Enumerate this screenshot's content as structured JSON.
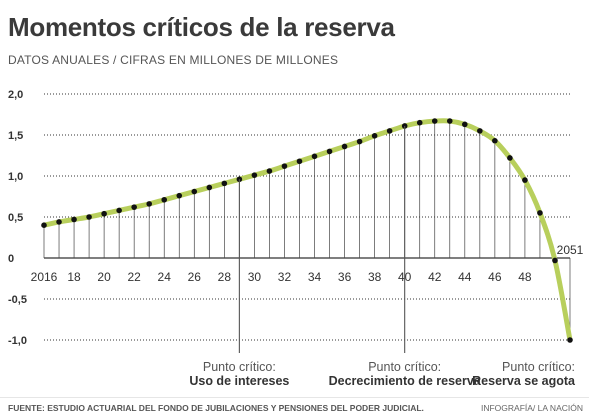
{
  "header": {
    "title": "Momentos críticos de la reserva",
    "subtitle": "DATOS ANUALES  / CIFRAS EN MILLONES DE MILLONES"
  },
  "footer": {
    "source": "FUENTE: ESTUDIO ACTUARIAL DEL FONDO DE JUBILACIONES Y PENSIONES DEL PODER JUDICIAL.",
    "credit": "INFOGRAFÍA/ LA NACIÓN"
  },
  "colors": {
    "line": "#b8cf5c",
    "points": "#111111",
    "grid": "#333333"
  },
  "chart_data": {
    "type": "line",
    "x": [
      2016,
      2017,
      2018,
      2019,
      2020,
      2021,
      2022,
      2023,
      2024,
      2025,
      2026,
      2027,
      2028,
      2029,
      2030,
      2031,
      2032,
      2033,
      2034,
      2035,
      2036,
      2037,
      2038,
      2039,
      2040,
      2041,
      2042,
      2043,
      2044,
      2045,
      2046,
      2047,
      2048,
      2049,
      2050,
      2051
    ],
    "series": [
      {
        "values": [
          0.4,
          0.44,
          0.47,
          0.5,
          0.54,
          0.58,
          0.62,
          0.66,
          0.71,
          0.76,
          0.81,
          0.86,
          0.91,
          0.96,
          1.01,
          1.06,
          1.12,
          1.18,
          1.24,
          1.3,
          1.36,
          1.42,
          1.49,
          1.55,
          1.61,
          1.65,
          1.67,
          1.67,
          1.63,
          1.55,
          1.43,
          1.22,
          0.95,
          0.55,
          -0.03,
          -1.0
        ]
      }
    ],
    "x_ticks": [
      "2016",
      "18",
      "20",
      "22",
      "24",
      "26",
      "28",
      "30",
      "32",
      "34",
      "36",
      "38",
      "40",
      "42",
      "44",
      "46",
      "48"
    ],
    "end_label": "2051",
    "y_ticks": [
      "2,0",
      "1,5",
      "1,0",
      "0,5",
      "0",
      "-0,5",
      "-1,0"
    ],
    "y_tick_values": [
      2.0,
      1.5,
      1.0,
      0.5,
      0,
      -0.5,
      -1.0
    ],
    "ylim": [
      -1.0,
      2.0
    ],
    "xlim": [
      2016,
      2051
    ],
    "grid": true,
    "annotations": [
      {
        "year": 2029,
        "label": "Punto crítico:",
        "text": "Uso de intereses"
      },
      {
        "year": 2040,
        "label": "Punto crítico:",
        "text": "Decrecimiento de reserva"
      },
      {
        "year": 2051,
        "label": "Punto crítico:",
        "text": "Reserva se agota"
      }
    ]
  }
}
